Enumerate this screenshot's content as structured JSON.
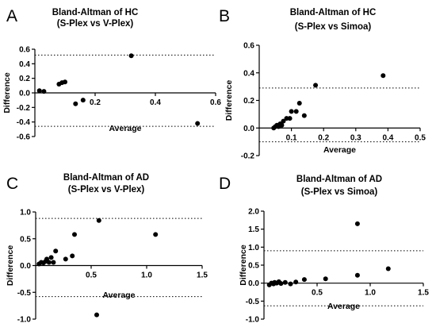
{
  "chart_data": [
    {
      "panel": "A",
      "type": "scatter",
      "title": "Bland-Altman of HC",
      "subtitle": "(S-Plex vs V-Plex)",
      "xlabel": "Average",
      "ylabel": "Difference",
      "xlim": [
        0,
        0.6
      ],
      "ylim": [
        -0.6,
        0.6
      ],
      "xticks": [
        "0.2",
        "0.4",
        "0.6"
      ],
      "yticks": [
        "0.6",
        "0.4",
        "0.2",
        "0.0",
        "-0.2",
        "-0.4",
        "-0.6"
      ],
      "limits_of_agreement": [
        0.52,
        -0.46
      ],
      "points": [
        {
          "x": 0.015,
          "y": 0.03
        },
        {
          "x": 0.03,
          "y": 0.02
        },
        {
          "x": 0.08,
          "y": 0.12
        },
        {
          "x": 0.09,
          "y": 0.14
        },
        {
          "x": 0.1,
          "y": 0.15
        },
        {
          "x": 0.135,
          "y": -0.15
        },
        {
          "x": 0.16,
          "y": -0.1
        },
        {
          "x": 0.32,
          "y": 0.51
        },
        {
          "x": 0.54,
          "y": -0.42
        }
      ]
    },
    {
      "panel": "B",
      "type": "scatter",
      "title": "Bland-Altman of HC",
      "subtitle": "(S-Plex vs Simoa)",
      "xlabel": "Average",
      "ylabel": "Difference",
      "xlim": [
        0,
        0.5
      ],
      "ylim": [
        -0.2,
        0.6
      ],
      "xticks": [
        "0.1",
        "0.2",
        "0.3",
        "0.4",
        "0.5"
      ],
      "yticks": [
        "0.6",
        "0.4",
        "0.2",
        "0.0",
        "-0.2"
      ],
      "limits_of_agreement": [
        0.29,
        -0.1
      ],
      "points": [
        {
          "x": 0.045,
          "y": 0.0
        },
        {
          "x": 0.05,
          "y": 0.01
        },
        {
          "x": 0.055,
          "y": 0.02
        },
        {
          "x": 0.06,
          "y": 0.01
        },
        {
          "x": 0.065,
          "y": 0.03
        },
        {
          "x": 0.07,
          "y": 0.02
        },
        {
          "x": 0.075,
          "y": 0.05
        },
        {
          "x": 0.085,
          "y": 0.07
        },
        {
          "x": 0.095,
          "y": 0.07
        },
        {
          "x": 0.1,
          "y": 0.12
        },
        {
          "x": 0.115,
          "y": 0.12
        },
        {
          "x": 0.125,
          "y": 0.18
        },
        {
          "x": 0.14,
          "y": 0.09
        },
        {
          "x": 0.175,
          "y": 0.31
        },
        {
          "x": 0.385,
          "y": 0.38
        }
      ]
    },
    {
      "panel": "C",
      "type": "scatter",
      "title": "Bland-Altman of AD",
      "subtitle": "(S-Plex vs V-Plex)",
      "xlabel": "Average",
      "ylabel": "Difference",
      "xlim": [
        0,
        1.5
      ],
      "ylim": [
        -1.0,
        1.0
      ],
      "xticks": [
        "0.5",
        "1.0",
        "1.5"
      ],
      "yticks": [
        "1.0",
        "0.5",
        "0.0",
        "-0.5",
        "-1.0"
      ],
      "limits_of_agreement": [
        0.88,
        -0.58
      ],
      "points": [
        {
          "x": 0.03,
          "y": 0.03
        },
        {
          "x": 0.05,
          "y": 0.06
        },
        {
          "x": 0.07,
          "y": 0.05
        },
        {
          "x": 0.09,
          "y": 0.08
        },
        {
          "x": 0.1,
          "y": 0.12
        },
        {
          "x": 0.12,
          "y": 0.06
        },
        {
          "x": 0.14,
          "y": 0.15
        },
        {
          "x": 0.16,
          "y": 0.06
        },
        {
          "x": 0.18,
          "y": 0.27
        },
        {
          "x": 0.27,
          "y": 0.12
        },
        {
          "x": 0.33,
          "y": 0.18
        },
        {
          "x": 0.35,
          "y": 0.58
        },
        {
          "x": 0.55,
          "y": -0.92
        },
        {
          "x": 0.57,
          "y": 0.84
        },
        {
          "x": 1.08,
          "y": 0.58
        }
      ]
    },
    {
      "panel": "D",
      "type": "scatter",
      "title": "Bland-Altman of AD",
      "subtitle": "(S-Plex vs Simoa)",
      "xlabel": "Average",
      "ylabel": "Difference",
      "xlim": [
        0,
        1.5
      ],
      "ylim": [
        -1.0,
        2.0
      ],
      "xticks": [
        "0.5",
        "1.0",
        "1.5"
      ],
      "yticks": [
        "2.0",
        "1.5",
        "1.0",
        "0.5",
        "0.0",
        "-0.5",
        "-1.0"
      ],
      "limits_of_agreement": [
        0.9,
        -0.63
      ],
      "points": [
        {
          "x": 0.05,
          "y": -0.05
        },
        {
          "x": 0.07,
          "y": 0.0
        },
        {
          "x": 0.09,
          "y": -0.02
        },
        {
          "x": 0.1,
          "y": 0.02
        },
        {
          "x": 0.12,
          "y": 0.0
        },
        {
          "x": 0.14,
          "y": 0.04
        },
        {
          "x": 0.16,
          "y": -0.01
        },
        {
          "x": 0.2,
          "y": 0.02
        },
        {
          "x": 0.25,
          "y": -0.02
        },
        {
          "x": 0.3,
          "y": 0.03
        },
        {
          "x": 0.38,
          "y": 0.1
        },
        {
          "x": 0.58,
          "y": 0.12
        },
        {
          "x": 0.88,
          "y": 1.65
        },
        {
          "x": 0.88,
          "y": 0.22
        },
        {
          "x": 1.17,
          "y": 0.4
        }
      ]
    }
  ]
}
